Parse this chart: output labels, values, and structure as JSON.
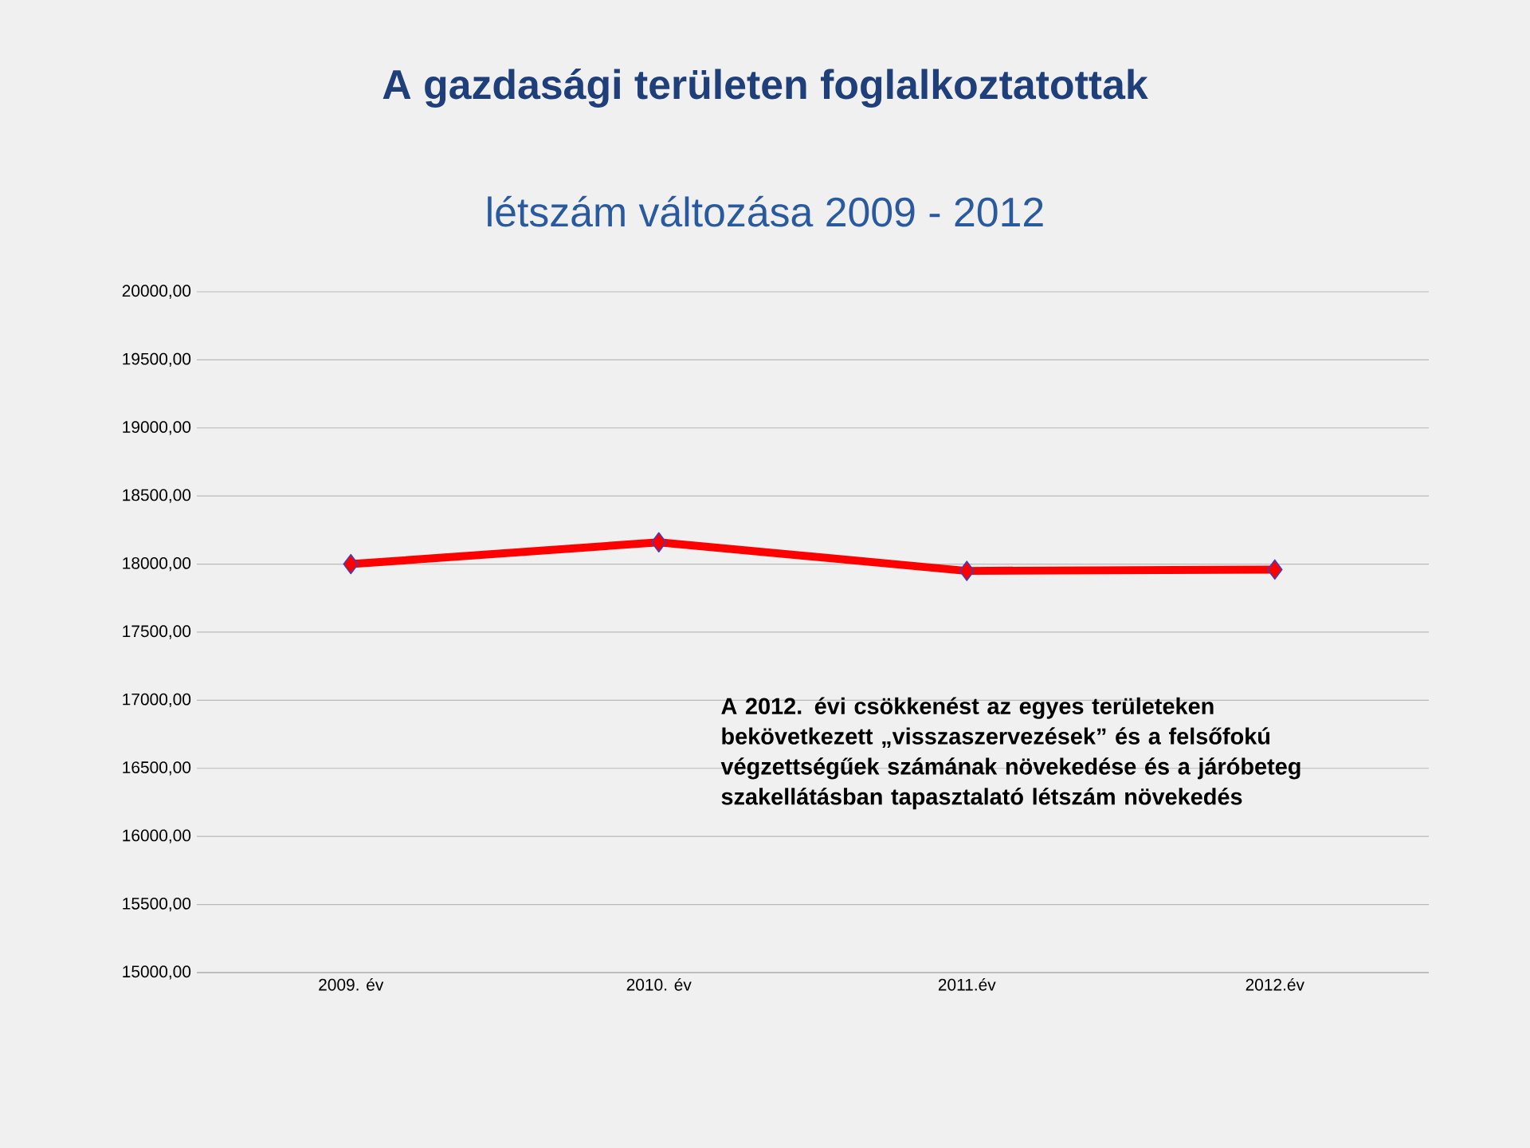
{
  "chart_data": {
    "type": "line",
    "title": "A gazdasági területen foglalkoztatottak",
    "subtitle": "létszám változása 2009 - 2012",
    "categories": [
      "2009. év",
      "2010. év",
      "2011.év",
      "2012.év"
    ],
    "series": [
      {
        "color": "#ff0000",
        "values": [
          18000,
          18160,
          17950,
          17960
        ]
      }
    ],
    "ylim": [
      15000,
      20000
    ],
    "yticks": [
      {
        "value": 15000,
        "label": "15000,00"
      },
      {
        "value": 15500,
        "label": "15500,00"
      },
      {
        "value": 16000,
        "label": "16000,00"
      },
      {
        "value": 16500,
        "label": "16500,00"
      },
      {
        "value": 17000,
        "label": "17000,00"
      },
      {
        "value": 17500,
        "label": "17500,00"
      },
      {
        "value": 18000,
        "label": "18000,00"
      },
      {
        "value": 18500,
        "label": "18500,00"
      },
      {
        "value": 19000,
        "label": "19000,00"
      },
      {
        "value": 19500,
        "label": "19500,00"
      },
      {
        "value": 20000,
        "label": "20000,00"
      }
    ],
    "grid": "y",
    "marker": "diamond",
    "line_style": "solid",
    "annotations": [
      "A 2012. évi csökkenést az egyes területeken bekövetkezett „visszaszervezések” és a felsőfokú végzettségűek számának növekedése és a járóbeteg szakellátásban tapasztalató létszám növekedés"
    ]
  }
}
